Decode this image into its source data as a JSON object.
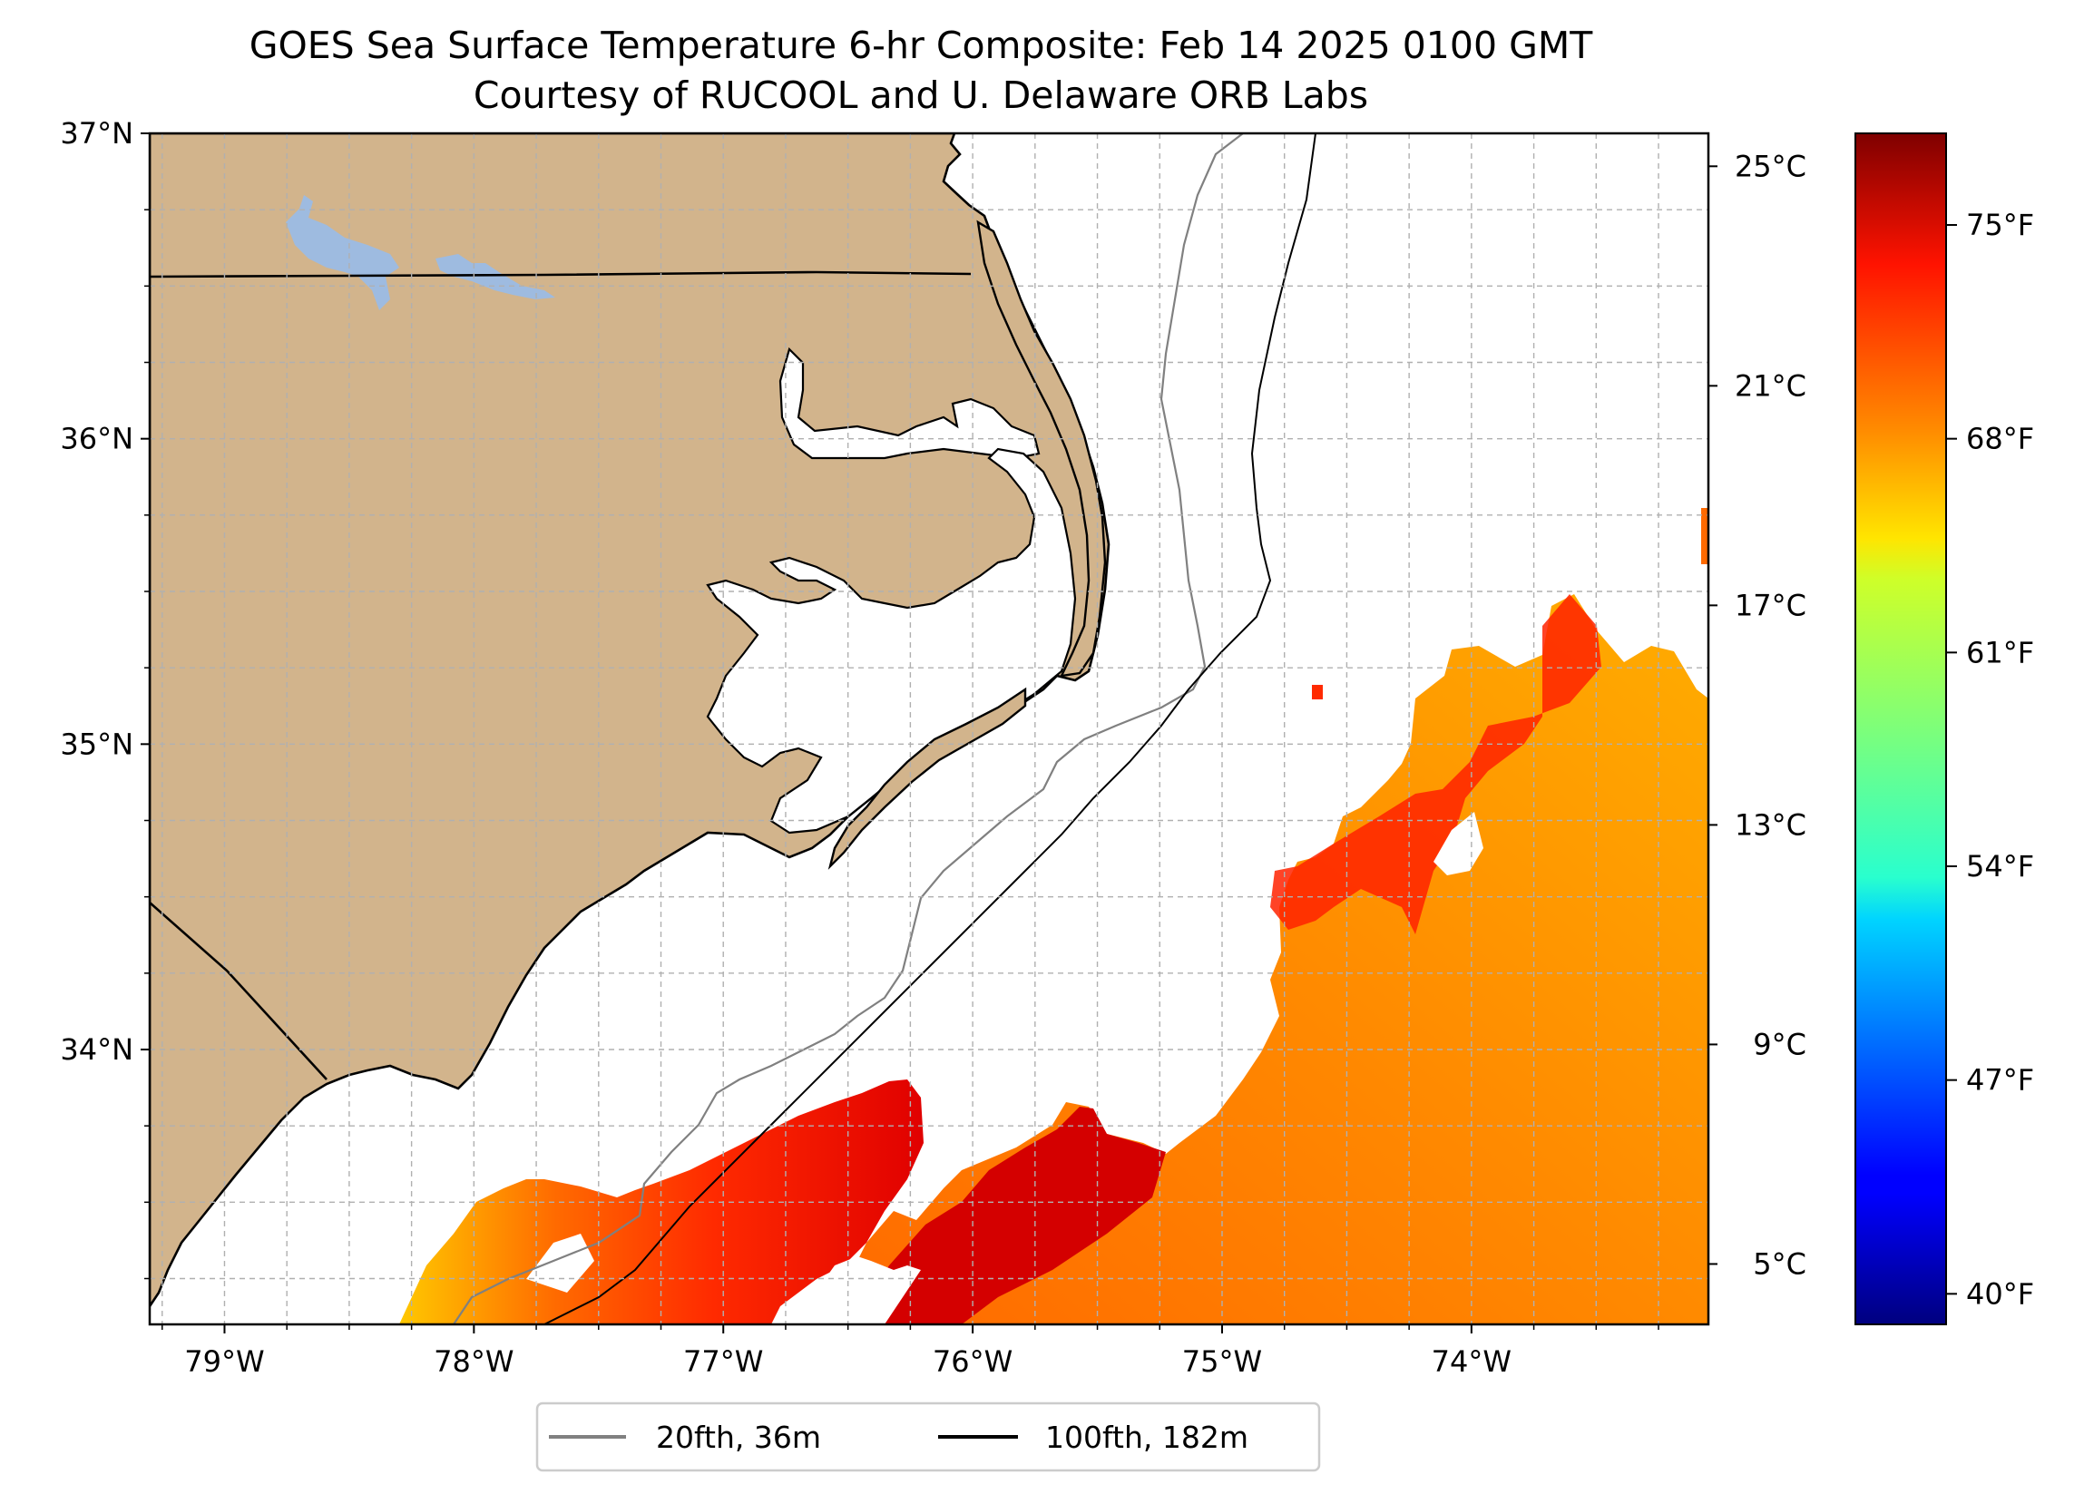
{
  "title": {
    "line1": "GOES Sea Surface Temperature 6-hr Composite: Feb 14 2025 0100 GMT",
    "line2": "Courtesy of RUCOOL and U. Delaware ORB Labs"
  },
  "map": {
    "lon_range": [
      -79.3,
      -73.05
    ],
    "lat_range": [
      33.1,
      37.0
    ],
    "grid": true,
    "lon_ticks": [
      {
        "value": -79,
        "label": "79°W"
      },
      {
        "value": -78,
        "label": "78°W"
      },
      {
        "value": -77,
        "label": "77°W"
      },
      {
        "value": -76,
        "label": "76°W"
      },
      {
        "value": -75,
        "label": "75°W"
      },
      {
        "value": -74,
        "label": "74°W"
      }
    ],
    "lat_ticks": [
      {
        "value": 37,
        "label": "37°N"
      },
      {
        "value": 36,
        "label": "36°N"
      },
      {
        "value": 35,
        "label": "35°N"
      },
      {
        "value": 34,
        "label": "34°N"
      }
    ],
    "colors": {
      "land": "#d2b48c",
      "water": "#9ebbe0",
      "coast": "#000000",
      "isobath_20fth": "#808080",
      "isobath_100fth": "#000000",
      "grid": "#b0b0b0"
    }
  },
  "sst_celsius_axis": {
    "range": [
      3.9,
      25.6
    ],
    "ticks": [
      {
        "value": 25,
        "label": "25°C"
      },
      {
        "value": 21,
        "label": "21°C"
      },
      {
        "value": 17,
        "label": "17°C"
      },
      {
        "value": 13,
        "label": "13°C"
      },
      {
        "value": 9,
        "label": "9°C"
      },
      {
        "value": 5,
        "label": "5°C"
      }
    ]
  },
  "colorbar": {
    "colormap": "jet",
    "range_f": [
      39.0,
      78.0
    ],
    "ticks": [
      {
        "value": 75,
        "label": "75°F"
      },
      {
        "value": 68,
        "label": "68°F"
      },
      {
        "value": 61,
        "label": "61°F"
      },
      {
        "value": 54,
        "label": "54°F"
      },
      {
        "value": 47,
        "label": "47°F"
      },
      {
        "value": 40,
        "label": "40°F"
      }
    ]
  },
  "legend": {
    "placement": "bottom-center",
    "items": [
      {
        "label": "20fth, 36m",
        "color": "#808080"
      },
      {
        "label": "100fth, 182m",
        "color": "#000000"
      }
    ]
  }
}
